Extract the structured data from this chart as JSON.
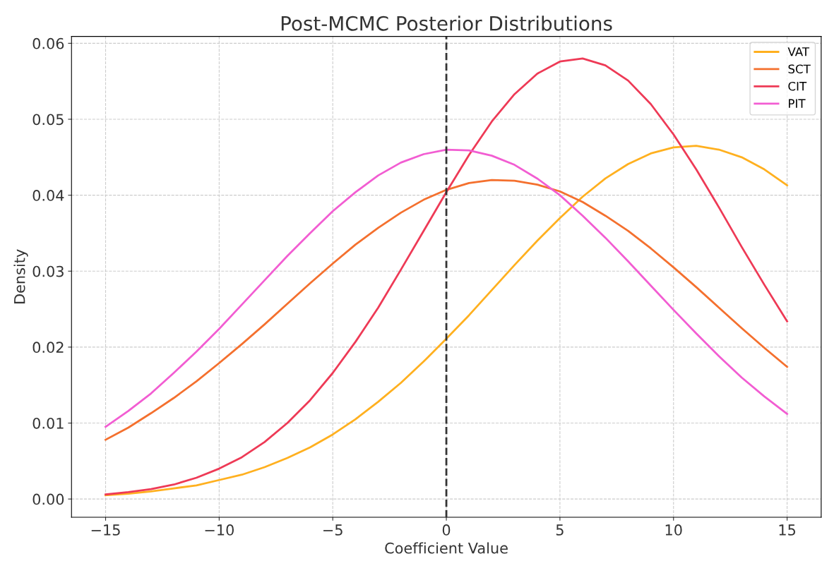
{
  "chart_data": {
    "type": "line",
    "title": "Post-MCMC Posterior Distributions",
    "xlabel": "Coefficient Value",
    "ylabel": "Density",
    "x": [
      -15,
      -14,
      -13,
      -12,
      -11,
      -10,
      -9,
      -8,
      -7,
      -6,
      -5,
      -4,
      -3,
      -2,
      -1,
      0,
      1,
      2,
      3,
      4,
      5,
      6,
      7,
      8,
      9,
      10,
      11,
      12,
      13,
      14,
      15
    ],
    "series": [
      {
        "name": "VAT",
        "color": "#ffb01f",
        "values": [
          0.0005,
          0.0007,
          0.001,
          0.0014,
          0.0018,
          0.0025,
          0.0032,
          0.0042,
          0.0054,
          0.0068,
          0.0085,
          0.0105,
          0.0128,
          0.0153,
          0.0181,
          0.0211,
          0.0242,
          0.0275,
          0.0308,
          0.034,
          0.037,
          0.0398,
          0.0422,
          0.0441,
          0.0455,
          0.0463,
          0.0465,
          0.046,
          0.045,
          0.0434,
          0.0413
        ]
      },
      {
        "name": "SCT",
        "color": "#f4702e",
        "values": [
          0.0078,
          0.0094,
          0.0113,
          0.0133,
          0.0155,
          0.0179,
          0.0204,
          0.023,
          0.0257,
          0.0284,
          0.031,
          0.0335,
          0.0357,
          0.0377,
          0.0394,
          0.0407,
          0.0416,
          0.042,
          0.0419,
          0.0414,
          0.0405,
          0.0391,
          0.0373,
          0.0353,
          0.033,
          0.0305,
          0.0279,
          0.0252,
          0.0225,
          0.0199,
          0.0174
        ]
      },
      {
        "name": "CIT",
        "color": "#ee3a56",
        "values": [
          0.0006,
          0.0009,
          0.0013,
          0.0019,
          0.0028,
          0.004,
          0.0055,
          0.0075,
          0.01,
          0.013,
          0.0166,
          0.0207,
          0.0252,
          0.0302,
          0.0353,
          0.0404,
          0.0453,
          0.0497,
          0.0533,
          0.056,
          0.0576,
          0.058,
          0.0571,
          0.0551,
          0.052,
          0.048,
          0.0434,
          0.0384,
          0.0332,
          0.0282,
          0.0234
        ]
      },
      {
        "name": "PIT",
        "color": "#f25dd2",
        "values": [
          0.0095,
          0.0116,
          0.0139,
          0.0166,
          0.0194,
          0.0224,
          0.0256,
          0.0288,
          0.032,
          0.035,
          0.0379,
          0.0404,
          0.0426,
          0.0443,
          0.0454,
          0.046,
          0.0459,
          0.0452,
          0.044,
          0.0422,
          0.04,
          0.0373,
          0.0344,
          0.0313,
          0.0281,
          0.0249,
          0.0218,
          0.0188,
          0.016,
          0.0135,
          0.0112
        ]
      }
    ],
    "xlim": [
      -16.5,
      16.5
    ],
    "xticks": [
      {
        "value": -15,
        "label": "−15"
      },
      {
        "value": -10,
        "label": "−10"
      },
      {
        "value": -5,
        "label": "−5"
      },
      0,
      5,
      10,
      15
    ],
    "ylim": [
      -0.0024,
      0.0609
    ],
    "yticks": [
      {
        "value": 0,
        "label": "0.00"
      },
      {
        "value": 0.01,
        "label": "0.01"
      },
      {
        "value": 0.02,
        "label": "0.02"
      },
      {
        "value": 0.03,
        "label": "0.03"
      },
      {
        "value": 0.04,
        "label": "0.04"
      },
      {
        "value": 0.05,
        "label": "0.05"
      },
      {
        "value": 0.06,
        "label": "0.06"
      }
    ],
    "ref_lines": [
      {
        "axis": "x",
        "value": 0,
        "color": "#333333",
        "line_style": "dashed"
      }
    ],
    "grid": true,
    "legend": "top right",
    "line_style": "solid",
    "marker": "none"
  }
}
